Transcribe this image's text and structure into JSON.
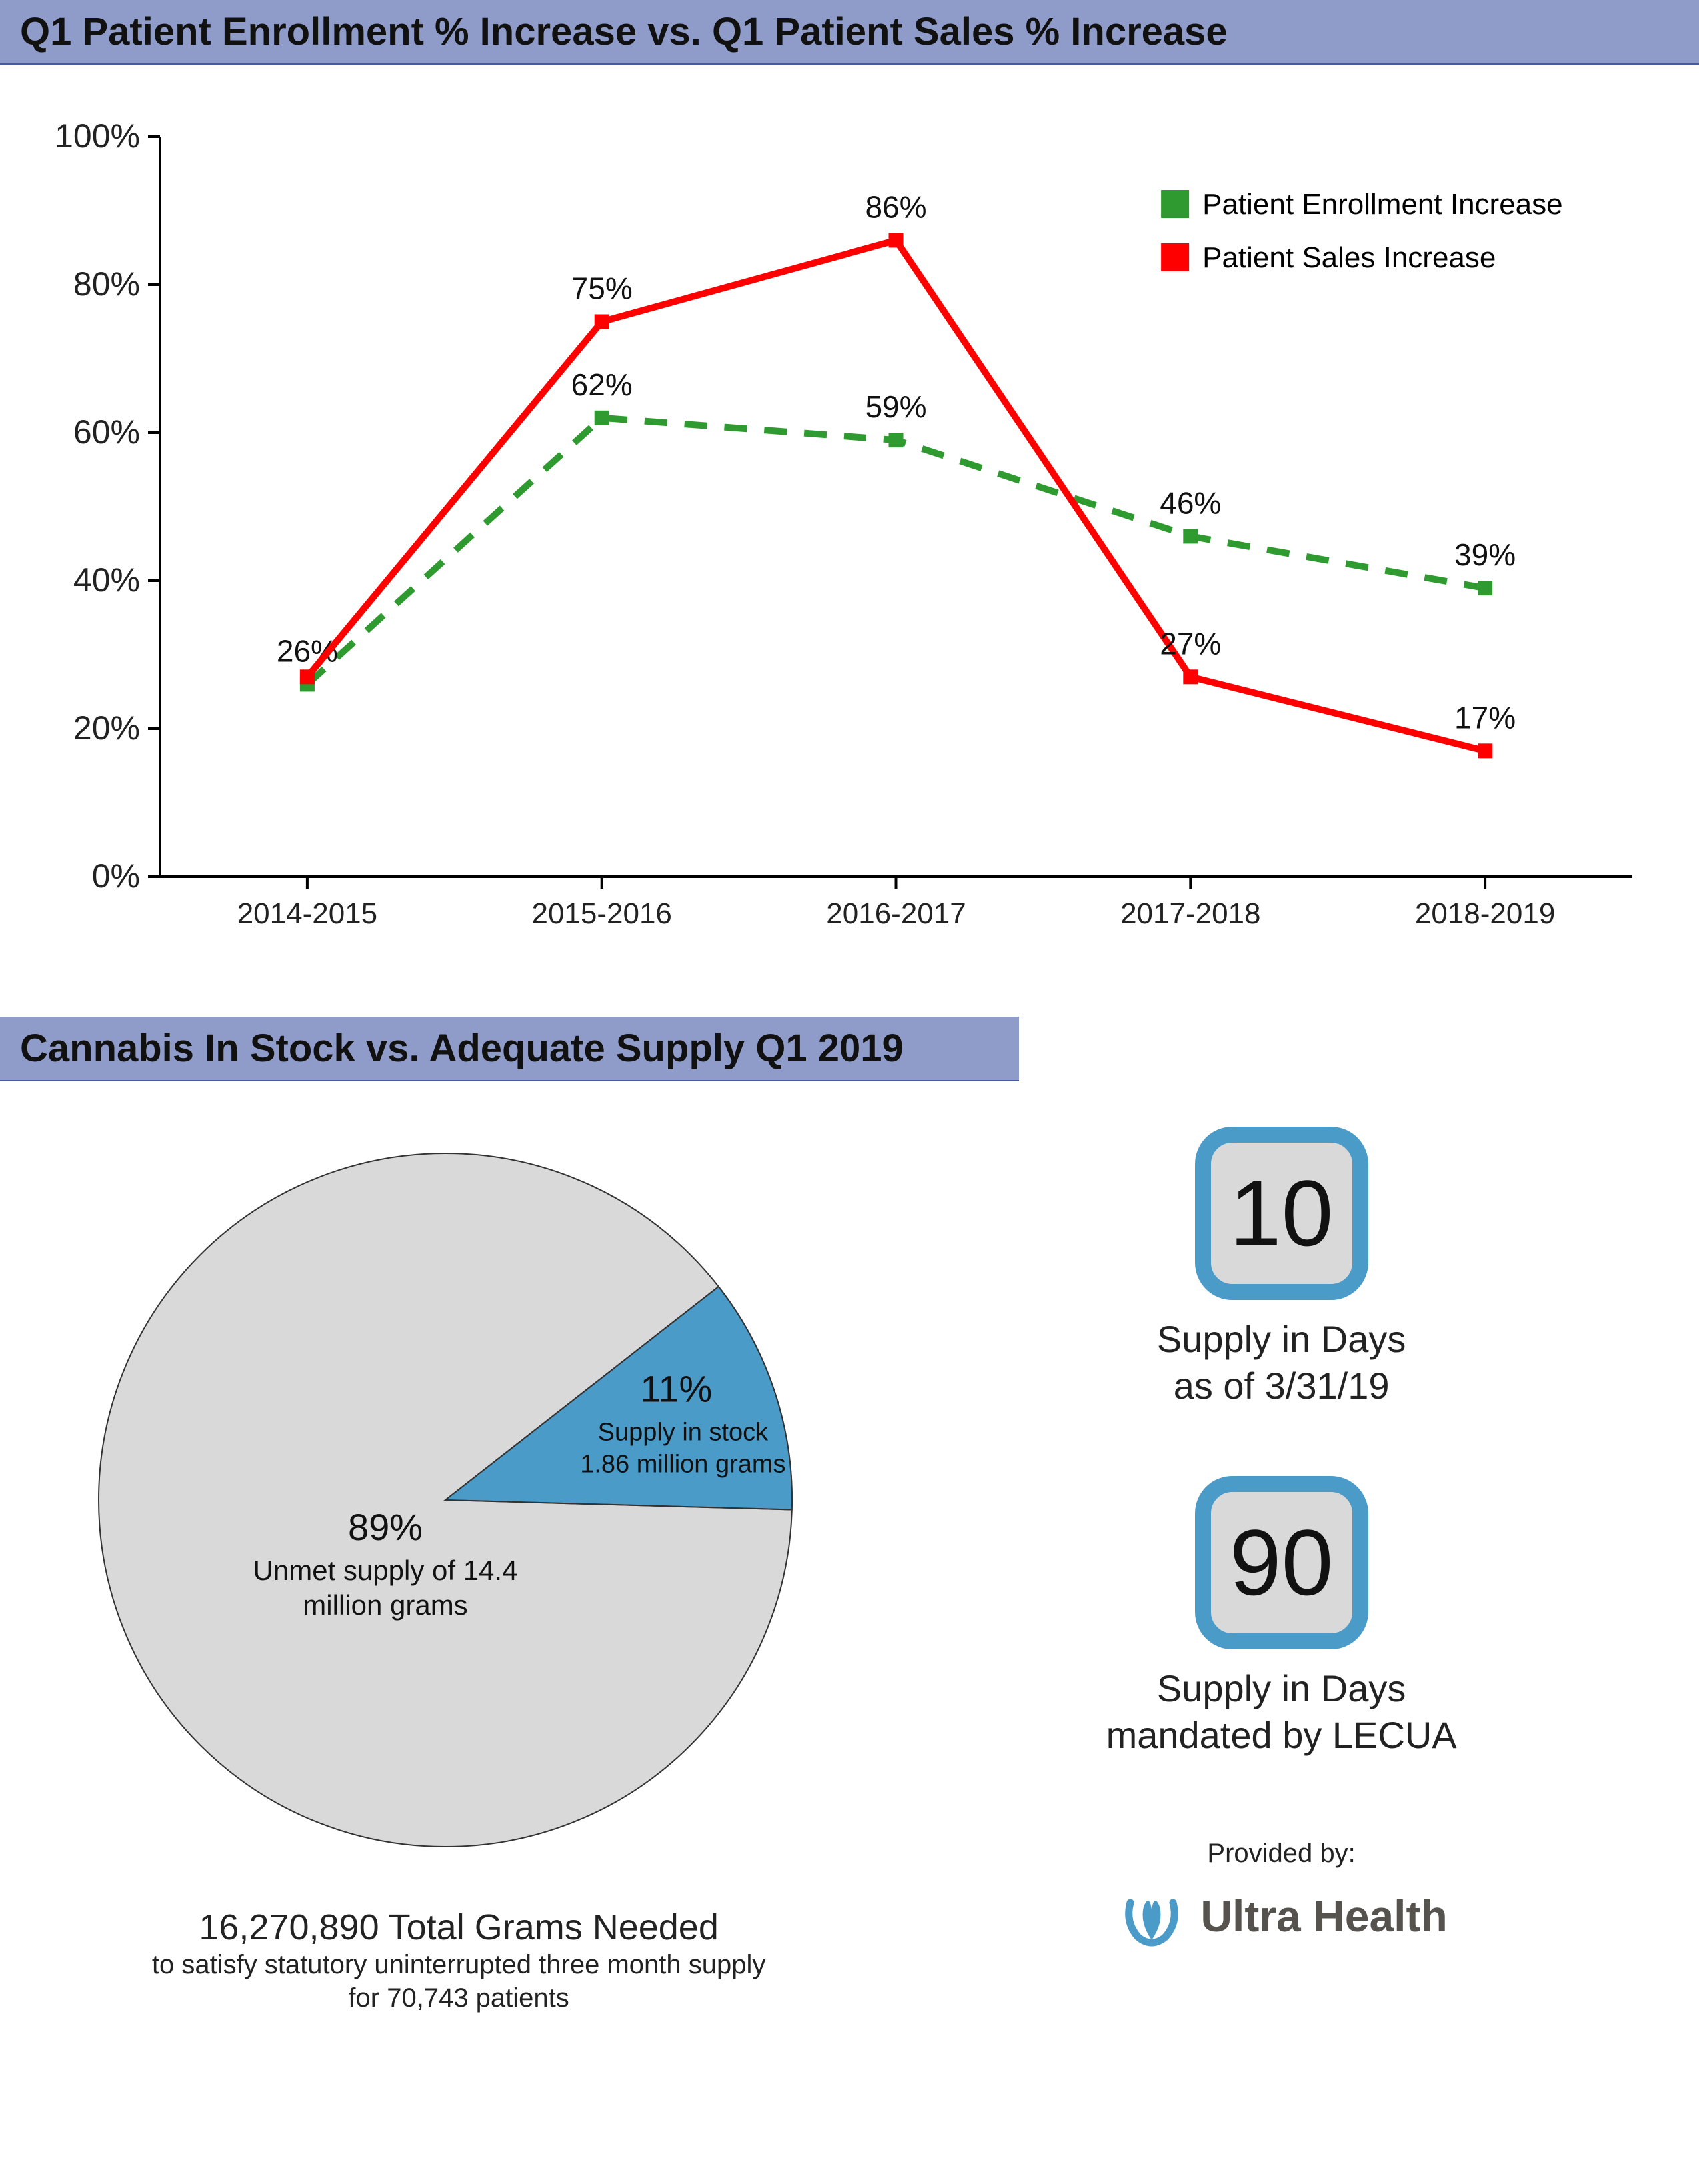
{
  "line_chart": {
    "title": "Q1 Patient Enrollment % Increase vs. Q1 Patient Sales % Increase",
    "title_bg": "#8f9cc9",
    "title_color": "#111111",
    "categories": [
      "2014-2015",
      "2015-2016",
      "2016-2017",
      "2017-2018",
      "2018-2019"
    ],
    "ylim": [
      0,
      100
    ],
    "ytick_step": 20,
    "y_format": "percent",
    "axis_color": "#000000",
    "background_color": "#ffffff",
    "series": [
      {
        "name": "Patient Enrollment Increase",
        "color": "#2f9a2f",
        "style": "dashed",
        "line_width": 10,
        "marker": "square",
        "marker_size": 22,
        "values": [
          26,
          62,
          59,
          46,
          39
        ],
        "labels": [
          "26%",
          "62%",
          "59%",
          "46%",
          "39%"
        ]
      },
      {
        "name": "Patient Sales Increase",
        "color": "#ff0000",
        "style": "solid",
        "line_width": 10,
        "marker": "square",
        "marker_size": 22,
        "values": [
          27,
          75,
          86,
          27,
          17
        ],
        "labels": [
          null,
          "75%",
          "86%",
          "27%",
          "17%"
        ]
      }
    ],
    "legend": {
      "position": "right",
      "fontsize": 44
    }
  },
  "pie_chart": {
    "title": "Cannabis In Stock vs. Adequate Supply Q1 2019",
    "title_bg": "#8f9cc9",
    "slices": [
      {
        "percent": 11,
        "label_pct": "11%",
        "label_line1": "Supply in stock",
        "label_line2": "1.86 million grams",
        "color": "#4b9bc9"
      },
      {
        "percent": 89,
        "label_pct": "89%",
        "label_line1": "Unmet supply of 14.4",
        "label_line2": "million grams",
        "color": "#d9d9d9"
      }
    ],
    "stroke_color": "#333333",
    "caption_main": "16,270,890 Total Grams Needed",
    "caption_sub1": "to satisfy statutory uninterrupted three month supply",
    "caption_sub2": "for  70,743 patients"
  },
  "stats": [
    {
      "value": "10",
      "label_line1": "Supply in Days",
      "label_line2": "as of 3/31/19",
      "box_border": "#4b9bc9",
      "box_bg": "#d9d9d9"
    },
    {
      "value": "90",
      "label_line1": "Supply in Days",
      "label_line2": "mandated by LECUA",
      "box_border": "#4b9bc9",
      "box_bg": "#d9d9d9"
    }
  ],
  "provider": {
    "label": "Provided  by:",
    "name": "Ultra Health",
    "logo_color": "#4b9bc9"
  }
}
